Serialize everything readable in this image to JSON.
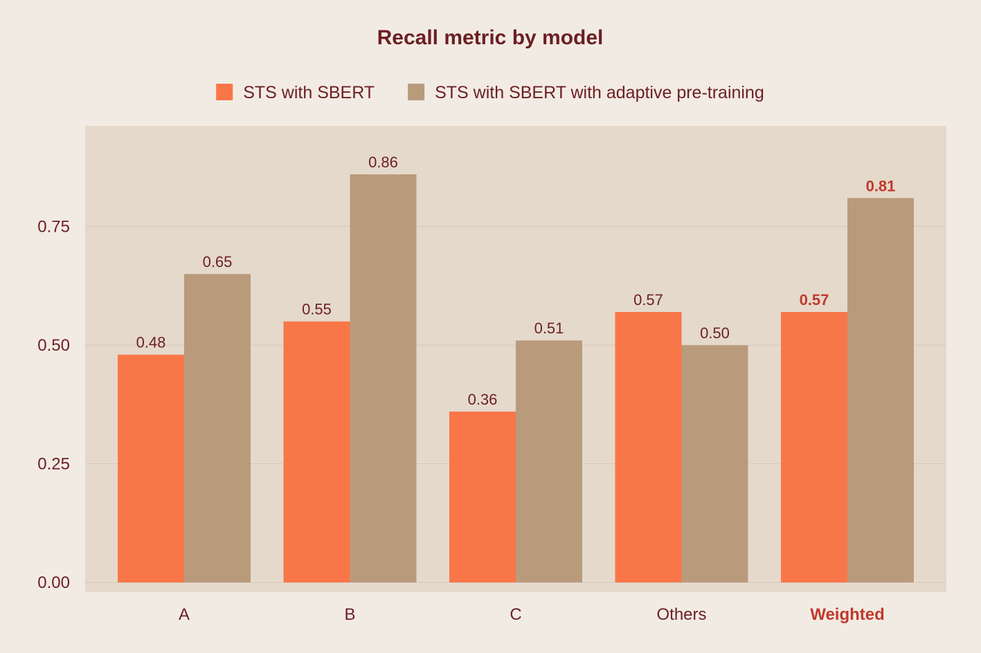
{
  "chart_data": {
    "type": "bar",
    "title": "Recall metric by model",
    "xlabel": "",
    "ylabel": "",
    "categories": [
      "A",
      "B",
      "C",
      "Others",
      "Weighted"
    ],
    "highlight_category": "Weighted",
    "series": [
      {
        "name": "STS with SBERT",
        "color": "#f97648",
        "values": [
          0.48,
          0.55,
          0.36,
          0.57,
          0.57
        ],
        "labels": [
          "0.48",
          "0.55",
          "0.36",
          "0.57",
          "0.57"
        ]
      },
      {
        "name": "STS with SBERT with adaptive pre-training",
        "color": "#b99b7c",
        "values": [
          0.65,
          0.86,
          0.51,
          0.5,
          0.81
        ],
        "labels": [
          "0.65",
          "0.86",
          "0.51",
          "0.50",
          "0.81"
        ]
      }
    ],
    "yticks": [
      0.0,
      0.25,
      0.5,
      0.75
    ],
    "ytick_labels": [
      "0.00",
      "0.25",
      "0.50",
      "0.75"
    ],
    "ylim": [
      0,
      0.96
    ],
    "grid": true,
    "legend_position": "top",
    "colors": {
      "background": "#f2ebe3",
      "plot_background": "#e5d9cc",
      "grid": "#d6c7b7",
      "text": "#6b1f24",
      "highlight": "#c0392b"
    }
  }
}
